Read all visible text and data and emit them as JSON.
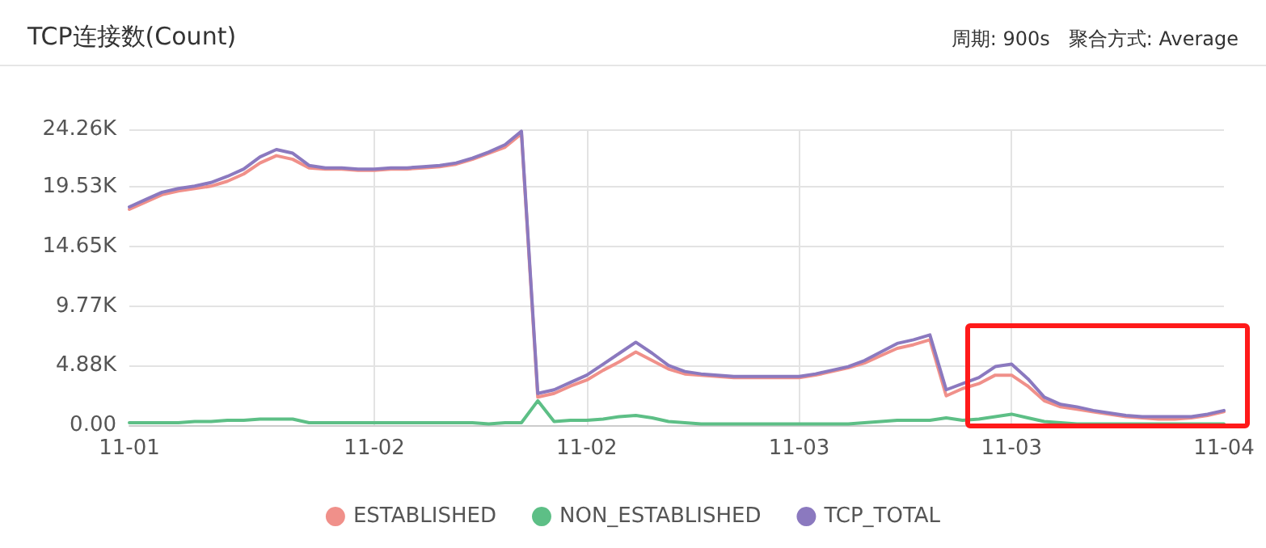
{
  "chart_data": {
    "type": "line",
    "title": "TCP连接数(Count)",
    "subtitle": "周期: 900s   聚合方式: Average",
    "categories": [
      "11-01",
      null,
      null,
      null,
      null,
      null,
      null,
      null,
      null,
      null,
      null,
      null,
      null,
      null,
      null,
      "11-02",
      null,
      null,
      null,
      null,
      null,
      null,
      null,
      null,
      null,
      null,
      null,
      null,
      "11-02",
      null,
      null,
      null,
      null,
      null,
      null,
      null,
      null,
      null,
      null,
      null,
      null,
      "11-03",
      null,
      null,
      null,
      null,
      null,
      null,
      null,
      null,
      null,
      null,
      null,
      null,
      "11-03",
      null,
      null,
      null,
      null,
      null,
      null,
      null,
      null,
      null,
      null,
      null,
      null,
      "11-04"
    ],
    "series": [
      {
        "name": "ESTABLISHED",
        "color": "#f0908a",
        "values": [
          17700,
          18300,
          18900,
          19200,
          19400,
          19600,
          20000,
          20600,
          21500,
          22100,
          21800,
          21100,
          21000,
          21000,
          20900,
          20900,
          21000,
          21000,
          21100,
          21200,
          21400,
          21800,
          22300,
          22800,
          23900,
          2300,
          2600,
          3200,
          3700,
          4500,
          5200,
          6000,
          5300,
          4600,
          4200,
          4100,
          4000,
          3900,
          3900,
          3900,
          3900,
          3900,
          4100,
          4400,
          4700,
          5100,
          5700,
          6300,
          6600,
          7000,
          2400,
          3000,
          3400,
          4100,
          4100,
          3200,
          2000,
          1500,
          1300,
          1100,
          900,
          700,
          600,
          500,
          500,
          600,
          800,
          1100
        ]
      },
      {
        "name": "NON_ESTABLISHED",
        "color": "#5dbf86",
        "values": [
          200,
          200,
          200,
          200,
          300,
          300,
          400,
          400,
          500,
          500,
          500,
          200,
          200,
          200,
          200,
          200,
          200,
          200,
          200,
          200,
          200,
          200,
          100,
          200,
          200,
          2000,
          300,
          400,
          400,
          500,
          700,
          800,
          600,
          300,
          200,
          100,
          100,
          100,
          100,
          100,
          100,
          100,
          100,
          100,
          100,
          200,
          300,
          400,
          400,
          400,
          600,
          400,
          500,
          700,
          900,
          600,
          300,
          200,
          100,
          100,
          100,
          100,
          100,
          100,
          100,
          100,
          100,
          100
        ]
      },
      {
        "name": "TCP_TOTAL",
        "color": "#8b79bf",
        "values": [
          17900,
          18500,
          19100,
          19400,
          19600,
          19900,
          20400,
          21000,
          22000,
          22600,
          22300,
          21300,
          21100,
          21100,
          21000,
          21000,
          21100,
          21100,
          21200,
          21300,
          21500,
          21900,
          22400,
          23000,
          24100,
          2600,
          2900,
          3500,
          4100,
          5000,
          5900,
          6800,
          5900,
          4900,
          4400,
          4200,
          4100,
          4000,
          4000,
          4000,
          4000,
          4000,
          4200,
          4500,
          4800,
          5300,
          6000,
          6700,
          7000,
          7400,
          2900,
          3400,
          3900,
          4800,
          5000,
          3800,
          2300,
          1700,
          1500,
          1200,
          1000,
          800,
          700,
          700,
          700,
          700,
          900,
          1200
        ]
      }
    ],
    "ylim": [
      0,
      24260
    ],
    "yticks": [
      {
        "value": 0,
        "label": "0.00"
      },
      {
        "value": 4880,
        "label": "4.88K"
      },
      {
        "value": 9770,
        "label": "9.77K"
      },
      {
        "value": 14650,
        "label": "14.65K"
      },
      {
        "value": 19530,
        "label": "19.53K"
      },
      {
        "value": 24260,
        "label": "24.26K"
      }
    ],
    "grid": true,
    "legend": "bottom",
    "marker": "none",
    "line_style": "solid"
  }
}
